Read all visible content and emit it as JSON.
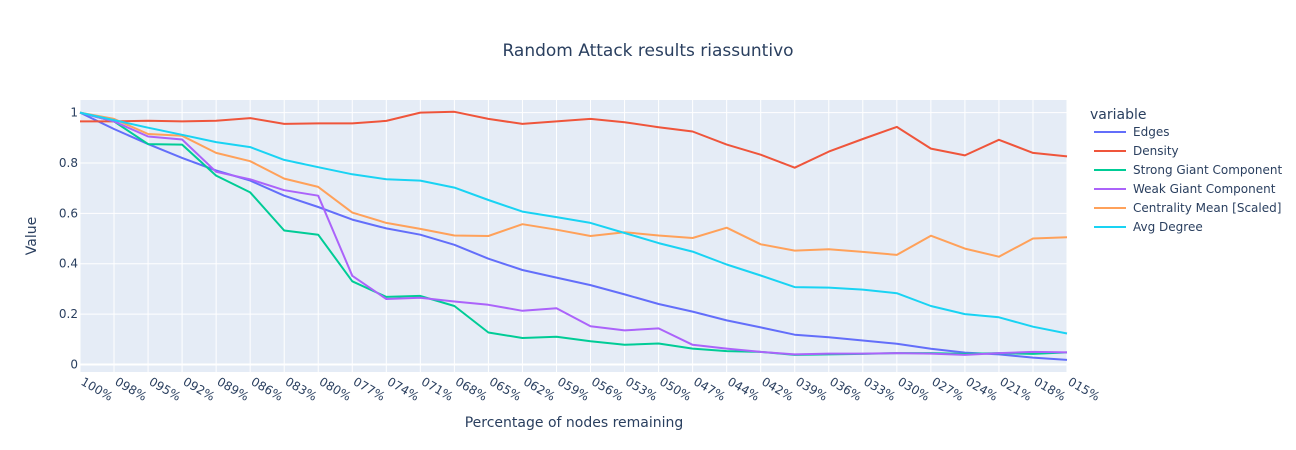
{
  "chart_data": {
    "type": "line",
    "title": "Random Attack results riassuntivo",
    "xlabel": "Percentage of nodes remaining",
    "ylabel": "Value",
    "legend_title": "variable",
    "legend_position": "right",
    "grid": true,
    "ylim": [
      -0.03,
      1.05
    ],
    "yticks": [
      0,
      0.2,
      0.4,
      0.6,
      0.8,
      1
    ],
    "ytick_labels": [
      "0",
      "0.2",
      "0.4",
      "0.6",
      "0.8",
      "1"
    ],
    "categories": [
      "100%",
      "098%",
      "095%",
      "092%",
      "089%",
      "086%",
      "083%",
      "080%",
      "077%",
      "074%",
      "071%",
      "068%",
      "065%",
      "062%",
      "059%",
      "056%",
      "053%",
      "050%",
      "047%",
      "044%",
      "042%",
      "039%",
      "036%",
      "033%",
      "030%",
      "027%",
      "024%",
      "021%",
      "018%",
      "015%"
    ],
    "series": [
      {
        "name": "Edges",
        "color": "#636efa",
        "values": [
          1.0,
          0.935,
          0.875,
          0.82,
          0.77,
          0.73,
          0.67,
          0.625,
          0.575,
          0.54,
          0.515,
          0.475,
          0.42,
          0.375,
          0.345,
          0.315,
          0.278,
          0.24,
          0.21,
          0.175,
          0.147,
          0.118,
          0.108,
          0.095,
          0.082,
          0.062,
          0.047,
          0.04,
          0.027,
          0.018
        ]
      },
      {
        "name": "Density",
        "color": "#EF553B",
        "values": [
          0.965,
          0.965,
          0.968,
          0.965,
          0.968,
          0.978,
          0.955,
          0.957,
          0.957,
          0.967,
          1.0,
          1.003,
          0.975,
          0.955,
          0.965,
          0.975,
          0.962,
          0.942,
          0.925,
          0.873,
          0.833,
          0.781,
          0.845,
          0.895,
          0.943,
          0.857,
          0.83,
          0.892,
          0.84,
          0.826
        ]
      },
      {
        "name": "Strong Giant Component",
        "color": "#00cc96",
        "values": [
          1.0,
          0.965,
          0.875,
          0.873,
          0.75,
          0.683,
          0.532,
          0.515,
          0.33,
          0.268,
          0.272,
          0.232,
          0.127,
          0.105,
          0.11,
          0.092,
          0.078,
          0.083,
          0.063,
          0.053,
          0.05,
          0.038,
          0.04,
          0.042,
          0.045,
          0.045,
          0.042,
          0.045,
          0.042,
          0.048
        ]
      },
      {
        "name": "Weak Giant Component",
        "color": "#ab63fa",
        "values": [
          1.0,
          0.965,
          0.905,
          0.893,
          0.765,
          0.735,
          0.692,
          0.67,
          0.352,
          0.26,
          0.265,
          0.25,
          0.237,
          0.213,
          0.223,
          0.152,
          0.135,
          0.143,
          0.078,
          0.063,
          0.05,
          0.04,
          0.043,
          0.043,
          0.045,
          0.043,
          0.038,
          0.045,
          0.05,
          0.048
        ]
      },
      {
        "name": "Centrality Mean [Scaled]",
        "color": "#FFA15A",
        "values": [
          1.0,
          0.975,
          0.915,
          0.908,
          0.84,
          0.807,
          0.738,
          0.705,
          0.603,
          0.562,
          0.538,
          0.512,
          0.51,
          0.557,
          0.535,
          0.51,
          0.525,
          0.512,
          0.502,
          0.543,
          0.477,
          0.452,
          0.457,
          0.447,
          0.435,
          0.511,
          0.46,
          0.428,
          0.5,
          0.505
        ]
      },
      {
        "name": "Avg Degree",
        "color": "#19d3f3",
        "values": [
          1.0,
          0.97,
          0.94,
          0.912,
          0.883,
          0.863,
          0.812,
          0.783,
          0.755,
          0.735,
          0.73,
          0.702,
          0.653,
          0.607,
          0.585,
          0.562,
          0.522,
          0.482,
          0.448,
          0.397,
          0.353,
          0.307,
          0.305,
          0.297,
          0.283,
          0.232,
          0.2,
          0.187,
          0.15,
          0.123
        ]
      }
    ]
  }
}
